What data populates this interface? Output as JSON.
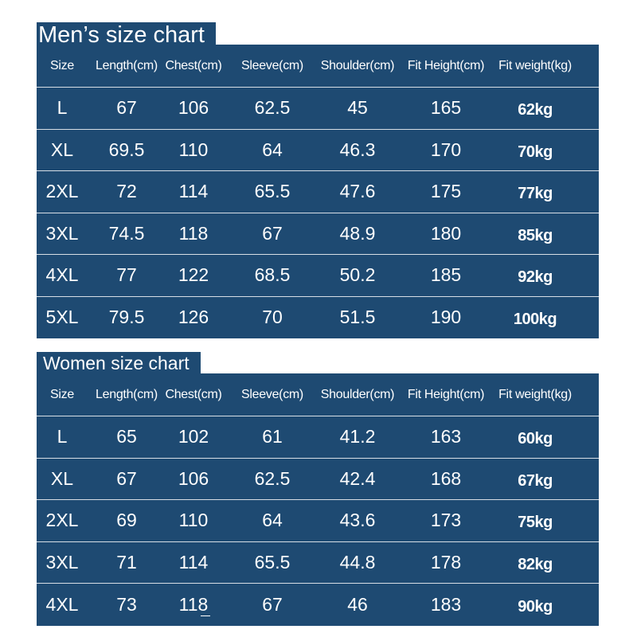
{
  "men": {
    "title": "Men’s size chart",
    "headers": [
      "Size",
      "Length(cm)",
      "Chest(cm)",
      "Sleeve(cm)",
      "Shoulder(cm)",
      "Fit Height(cm)",
      "Fit weight(kg)"
    ],
    "rows": [
      [
        "L",
        "67",
        "106",
        "62.5",
        "45",
        "165",
        "62kg"
      ],
      [
        "XL",
        "69.5",
        "110",
        "64",
        "46.3",
        "170",
        "70kg"
      ],
      [
        "2XL",
        "72",
        "114",
        "65.5",
        "47.6",
        "175",
        "77kg"
      ],
      [
        "3XL",
        "74.5",
        "118",
        "67",
        "48.9",
        "180",
        "85kg"
      ],
      [
        "4XL",
        "77",
        "122",
        "68.5",
        "50.2",
        "185",
        "92kg"
      ],
      [
        "5XL",
        "79.5",
        "126",
        "70",
        "51.5",
        "190",
        "100kg"
      ]
    ]
  },
  "women": {
    "title": "Women size chart",
    "headers": [
      "Size",
      "Length(cm)",
      "Chest(cm)",
      "Sleeve(cm)",
      "Shoulder(cm)",
      "Fit Height(cm)",
      "Fit weight(kg)"
    ],
    "rows": [
      [
        "L",
        "65",
        "102",
        "61",
        "41.2",
        "163",
        "60kg"
      ],
      [
        "XL",
        "67",
        "106",
        "62.5",
        "42.4",
        "168",
        "67kg"
      ],
      [
        "2XL",
        "69",
        "110",
        "64",
        "43.6",
        "173",
        "75kg"
      ],
      [
        "3XL",
        "71",
        "114",
        "65.5",
        "44.8",
        "178",
        "82kg"
      ],
      [
        "4XL",
        "73",
        "118",
        "67",
        "46",
        "183",
        "90kg"
      ]
    ]
  },
  "colors": {
    "panel": "#1e4a72",
    "text": "#ffffff",
    "divider": "#d8dfe6"
  }
}
